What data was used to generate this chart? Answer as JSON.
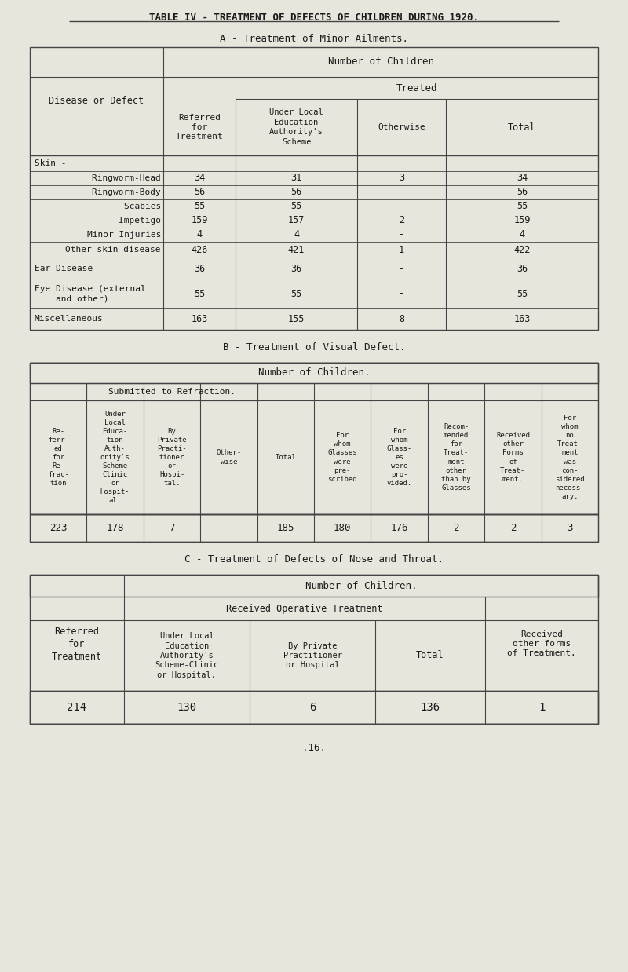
{
  "title": "TABLE IV - TREATMENT OF DEFECTS OF CHILDREN DURING 1920.",
  "section_a_title": "A - Treatment of Minor Ailments.",
  "section_b_title": "B - Treatment of Visual Defect.",
  "section_c_title": "C - Treatment of Defects of Nose and Throat.",
  "footer": ".16.",
  "bg_color": "#e8e5dc",
  "line_color": "#444444",
  "text_color": "#1a1a1a",
  "section_a": {
    "rows": [
      [
        "Skin -",
        "",
        "",
        "",
        ""
      ],
      [
        "    Ringworm-Head",
        "34",
        "31",
        "3",
        "34"
      ],
      [
        "    Ringworm-Body",
        "56",
        "56",
        "-",
        "56"
      ],
      [
        "    Scabies",
        "55",
        "55",
        "-",
        "55"
      ],
      [
        "    Impetigo",
        "159",
        "157",
        "2",
        "159"
      ],
      [
        "    Minor Injuries",
        "4",
        "4",
        "-",
        "4"
      ],
      [
        "    Other skin disease",
        "426",
        "421",
        "1",
        "422"
      ],
      [
        "Ear Disease",
        "36",
        "36",
        "-",
        "36"
      ],
      [
        "Eye Disease (external\n    and other)",
        "55",
        "55",
        "-",
        "55"
      ],
      [
        "Miscellaneous",
        "163",
        "155",
        "8",
        "163"
      ]
    ]
  },
  "section_b": {
    "col_headers": [
      "Re-\nferr-\ned\nfor\nRe-\nfrac-\ntion",
      "Under\nLocal\nEduca-\ntion\nAuth-\nority's\nScheme\nClinic\nor\nHospit-\nal.",
      "By\nPrivate\nPracti-\ntioner\nor\nHospi-\ntal.",
      "Other-\nwise",
      "Total",
      "For\nwhom\nGlasses\nwere\npre-\nscribed",
      "For\nwhom\nGlass-\nes\nwere\npro-\nvided.",
      "Recom-\nmended\nfor\nTreat-\nment\nother\nthan by\nGlasses",
      "Received\nother\nForms\nof\nTreat-\nment.",
      "For\nwhom\nno\nTreat-\nment\nwas\ncon-\nsidered\nnecess-\nary."
    ],
    "data_row": [
      "223",
      "178",
      "7",
      "-",
      "185",
      "180",
      "176",
      "2",
      "2",
      "3"
    ]
  },
  "section_c": {
    "data_row": [
      "214",
      "130",
      "6",
      "136",
      "1"
    ]
  }
}
